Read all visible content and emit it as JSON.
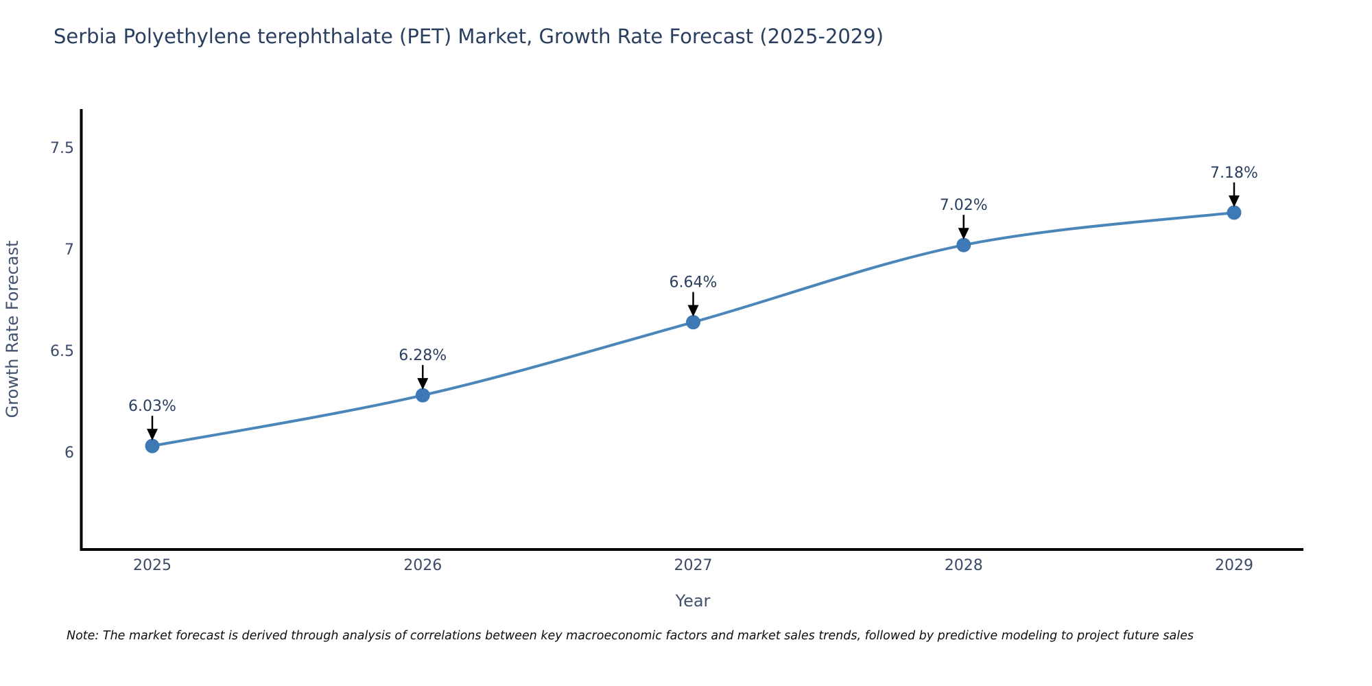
{
  "title": "Serbia Polyethylene terephthalate (PET) Market, Growth Rate Forecast (2025-2029)",
  "note": "Note: The market forecast is derived through analysis of correlations between key macroeconomic factors and market sales trends, followed by predictive modeling to project future sales",
  "chart_data": {
    "type": "line",
    "x": [
      "2025",
      "2026",
      "2027",
      "2028",
      "2029"
    ],
    "y": [
      6.03,
      6.28,
      6.64,
      7.02,
      7.18
    ],
    "point_labels": [
      "6.03%",
      "6.28%",
      "6.64%",
      "7.02%",
      "7.18%"
    ],
    "title": "Serbia Polyethylene terephthalate (PET) Market, Growth Rate Forecast (2025-2029)",
    "xlabel": "Year",
    "ylabel": "Growth Rate Forecast",
    "yticks": [
      6,
      6.5,
      7,
      7.5
    ],
    "ytick_labels": [
      "6",
      "6.5",
      "7",
      "7.5"
    ],
    "ylim": [
      5.52,
      7.69
    ],
    "grid": false,
    "legend": false,
    "line_shape": "spline",
    "colors": {
      "line": "#4a86ba",
      "marker": "#3d7ab5",
      "annotation_text": "#2a3f5f",
      "annotation_arrow": "#000000",
      "axis_line": "#000000",
      "tick_label": "#3b4a66",
      "axis_title": "#42526e",
      "title": "#2a3f5f",
      "background": "#ffffff"
    }
  }
}
